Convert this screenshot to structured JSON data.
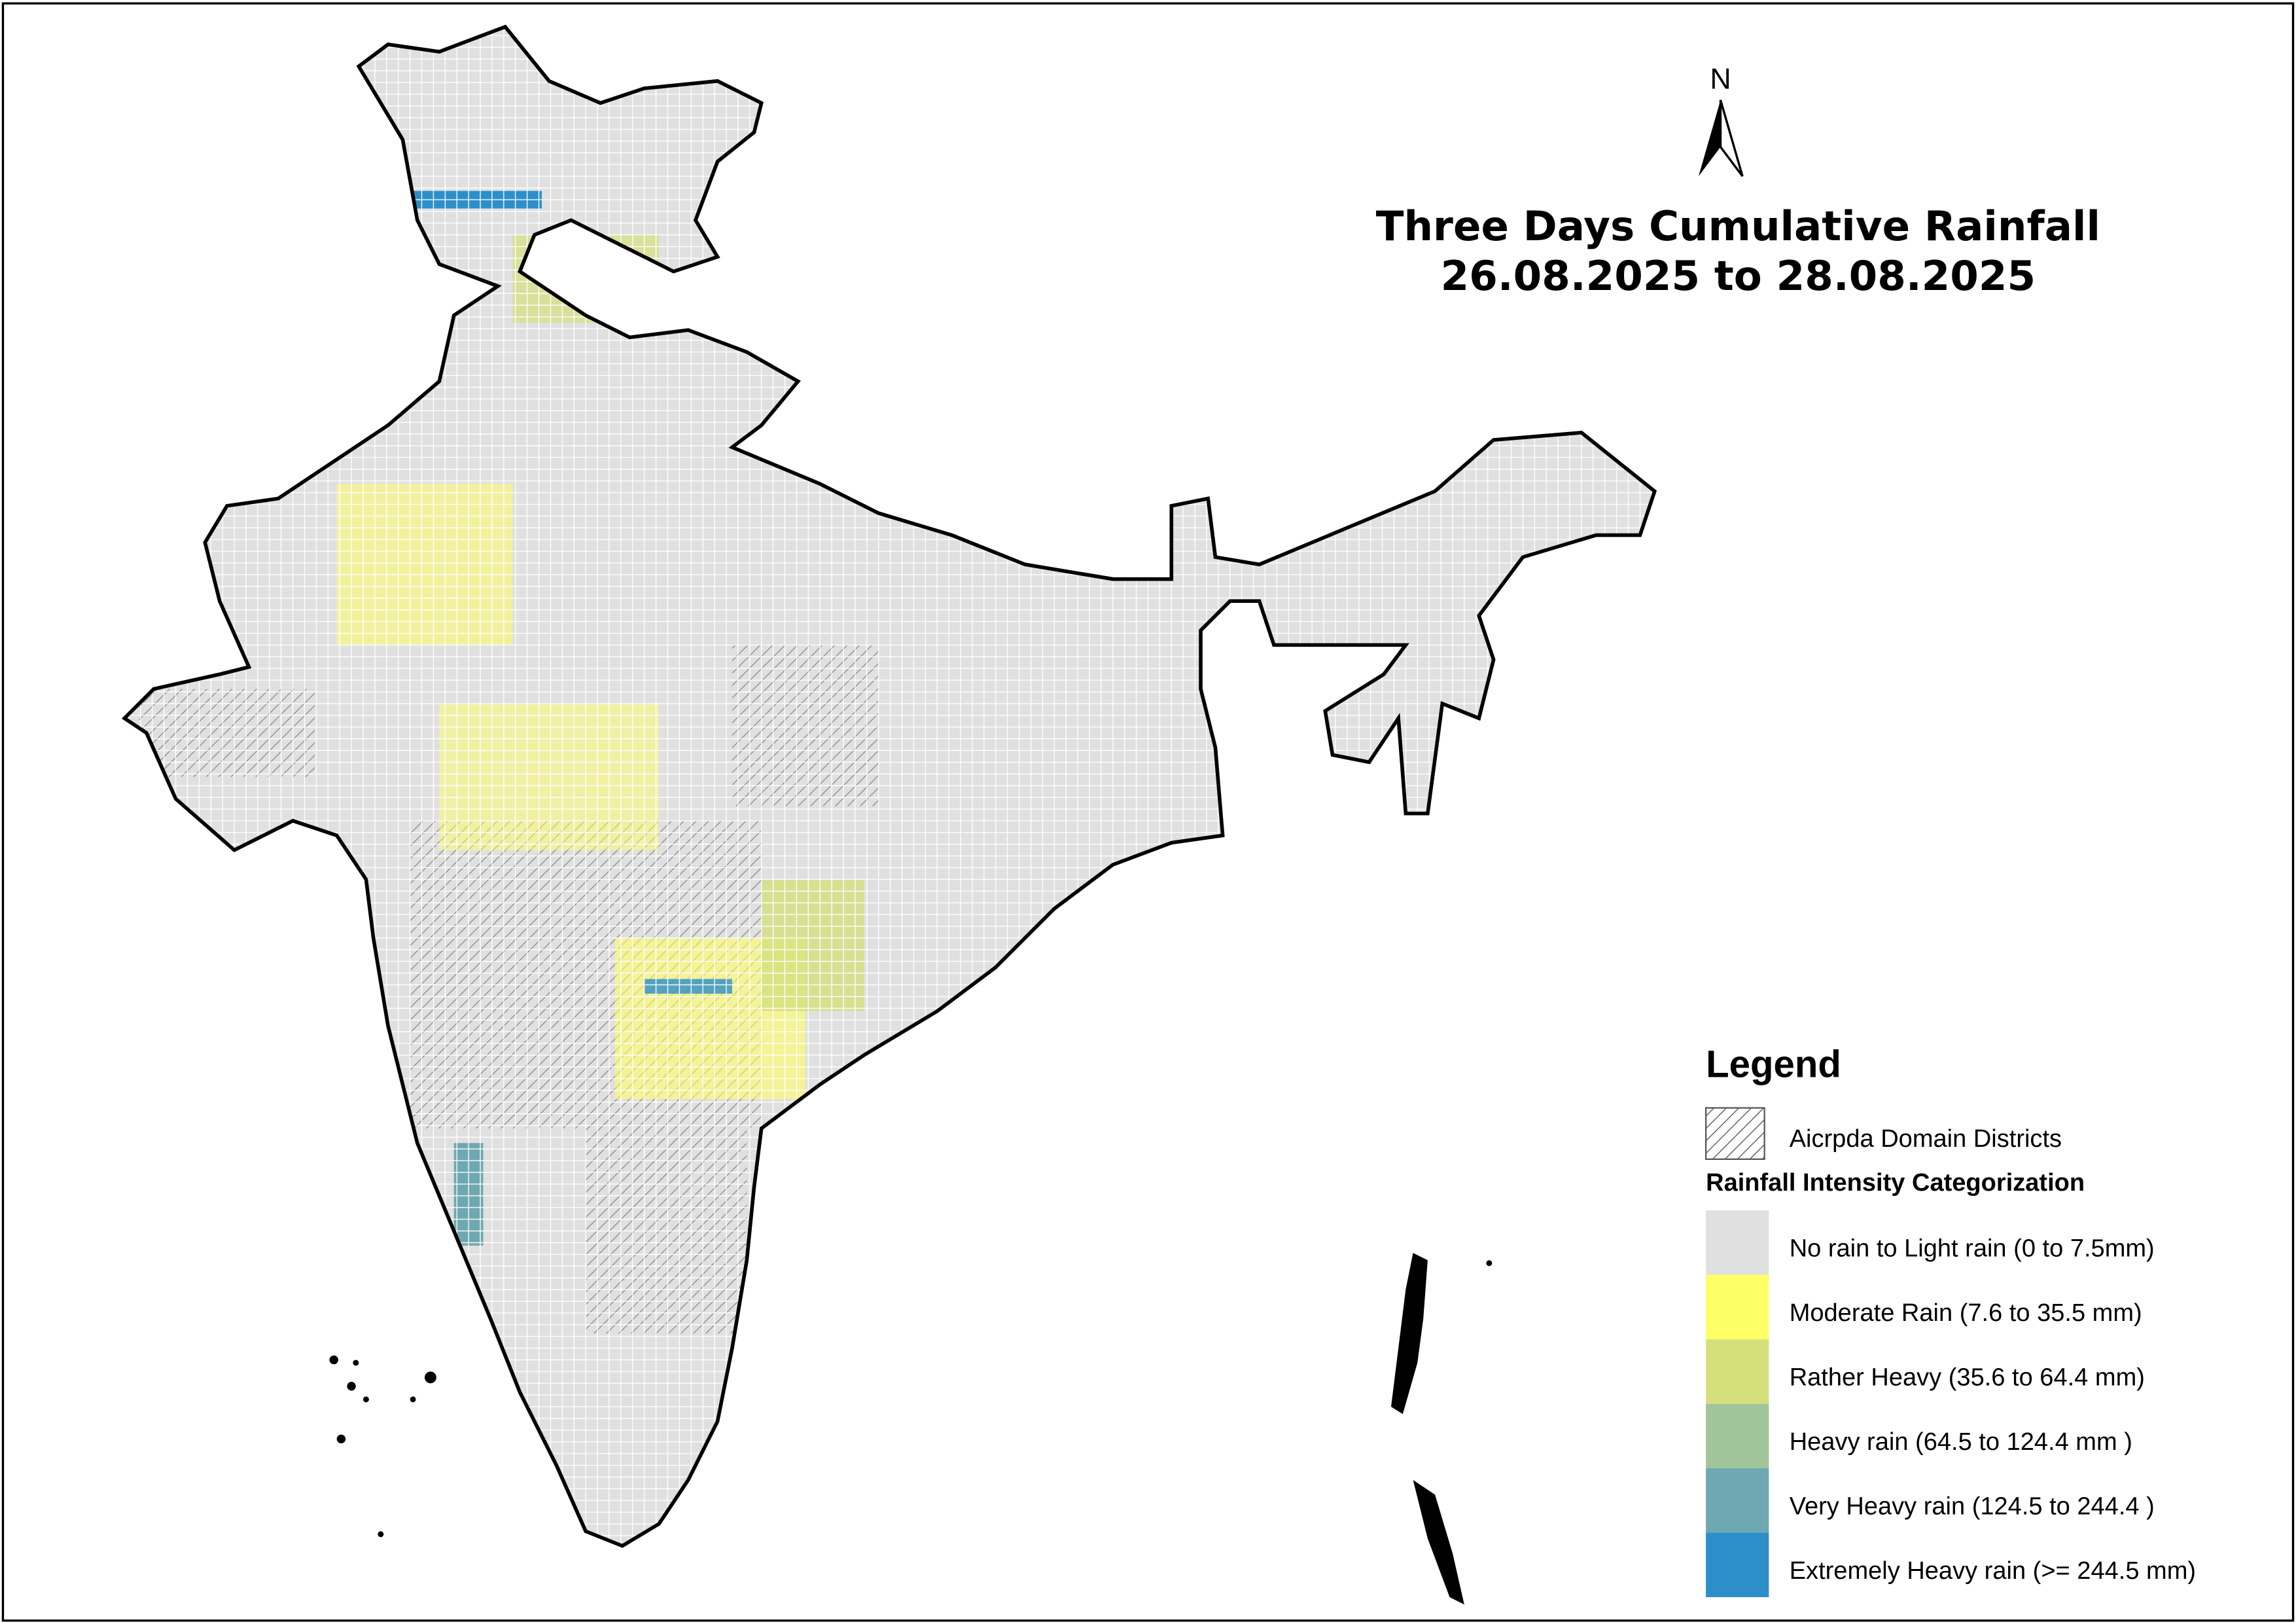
{
  "title": [
    "Three Days Cumulative Rainfall",
    "26.08.2025 to 28.08.2025"
  ],
  "north_label": "N",
  "legend": {
    "title": "Legend",
    "hatch_label": "Aicrpda Domain Districts",
    "subtitle": "Rainfall Intensity Categorization",
    "items": [
      {
        "label": "No rain to Light rain (0 to 7.5mm)",
        "color": "#e0e0e0"
      },
      {
        "label": "Moderate Rain (7.6 to 35.5 mm)",
        "color": "#ffff66"
      },
      {
        "label": "Rather Heavy (35.6 to 64.4 mm)",
        "color": "#d5e07d"
      },
      {
        "label": "Heavy rain (64.5 to 124.4 mm )",
        "color": "#a2c49a"
      },
      {
        "label": "Very Heavy rain (124.5 to 244.4 )",
        "color": "#6ea8b0"
      },
      {
        "label": "Extremely Heavy rain  (>= 244.5 mm)",
        "color": "#2c8fc9"
      }
    ]
  }
}
